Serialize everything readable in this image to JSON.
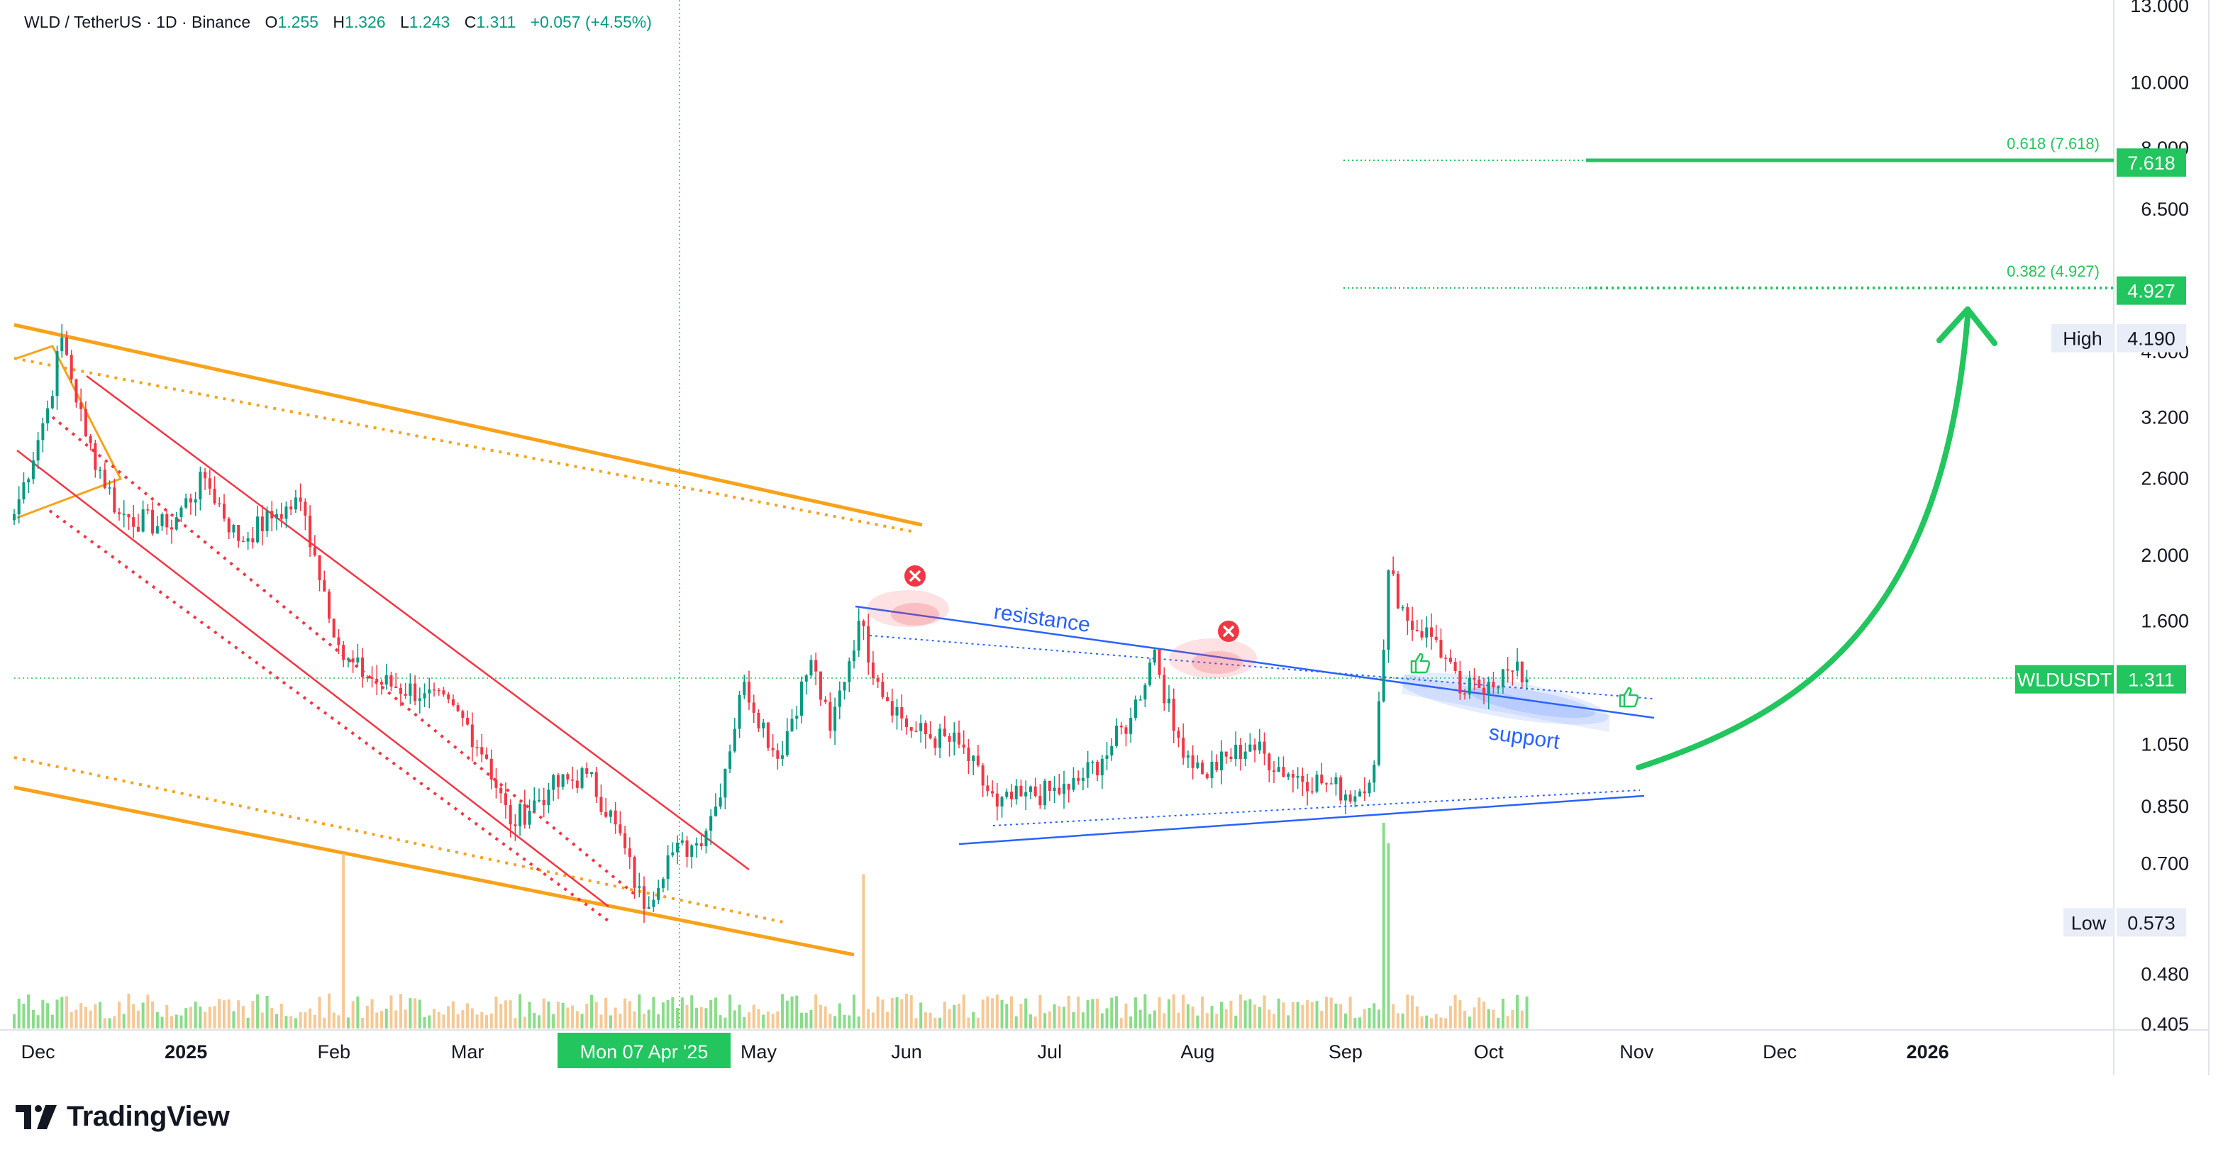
{
  "header": {
    "symbol": "WLD / TetherUS · 1D · Binance",
    "open_label": "O",
    "open": "1.255",
    "high_label": "H",
    "high": "1.326",
    "low_label": "L",
    "low": "1.243",
    "close_label": "C",
    "close": "1.311",
    "change": "+0.057 (+4.55%)"
  },
  "brand": {
    "name": "TradingView"
  },
  "colors": {
    "up": "#089981",
    "down": "#f23645",
    "channel": "#f7a21b",
    "red_channel": "#f23645",
    "blue_line": "#2962ff",
    "green_target": "#22c55e",
    "up_volume": "#7dd87d",
    "down_volume": "#f5c28a"
  },
  "chart_data": {
    "type": "candlestick",
    "symbol": "WLDUSDT",
    "timeframe": "1D",
    "exchange": "Binance",
    "y_scale": "log",
    "ylim": [
      0.405,
      13.0
    ],
    "y_ticks": [
      "13.000",
      "10.000",
      "8.000",
      "6.500",
      "4.000",
      "3.200",
      "2.600",
      "2.000",
      "1.600",
      "1.050",
      "0.850",
      "0.700",
      "0.480",
      "0.405"
    ],
    "y_tick_values": [
      13.0,
      10.0,
      8.0,
      6.5,
      4.0,
      3.2,
      2.6,
      2.0,
      1.6,
      1.05,
      0.85,
      0.7,
      0.48,
      0.405
    ],
    "x_ticks": [
      "Dec",
      "2025",
      "Feb",
      "Mar",
      "Mon 07 Apr '25",
      "May",
      "Jun",
      "Jul",
      "Aug",
      "Sep",
      "Oct",
      "Nov",
      "Dec",
      "2026"
    ],
    "x_tick_dates": [
      "2024-12-01",
      "2025-01-01",
      "2025-02-01",
      "2025-03-01",
      "2025-04-07",
      "2025-05-01",
      "2025-06-01",
      "2025-07-01",
      "2025-08-01",
      "2025-09-01",
      "2025-10-01",
      "2025-11-01",
      "2025-12-01",
      "2026-01-01"
    ],
    "x_tick_highlight": "Mon 07 Apr '25",
    "x_range": [
      "2024-11-26",
      "2026-02-09"
    ],
    "last_candle_date": "2025-10-09",
    "candles_daily_close_anchors": [
      {
        "date": "2024-11-26",
        "close": 2.3
      },
      {
        "date": "2024-12-03",
        "close": 3.3
      },
      {
        "date": "2024-12-06",
        "close": 4.2
      },
      {
        "date": "2024-12-11",
        "close": 3.0
      },
      {
        "date": "2024-12-18",
        "close": 2.3
      },
      {
        "date": "2024-12-28",
        "close": 2.2
      },
      {
        "date": "2025-01-05",
        "close": 2.6
      },
      {
        "date": "2025-01-12",
        "close": 2.1
      },
      {
        "date": "2025-01-20",
        "close": 2.3
      },
      {
        "date": "2025-01-25",
        "close": 2.4
      },
      {
        "date": "2025-01-28",
        "close": 2.0
      },
      {
        "date": "2025-02-03",
        "close": 1.4
      },
      {
        "date": "2025-02-10",
        "close": 1.3
      },
      {
        "date": "2025-02-20",
        "close": 1.25
      },
      {
        "date": "2025-02-28",
        "close": 1.15
      },
      {
        "date": "2025-03-05",
        "close": 1.0
      },
      {
        "date": "2025-03-10",
        "close": 0.8
      },
      {
        "date": "2025-03-18",
        "close": 0.9
      },
      {
        "date": "2025-03-26",
        "close": 0.95
      },
      {
        "date": "2025-04-01",
        "close": 0.8
      },
      {
        "date": "2025-04-07",
        "close": 0.6
      },
      {
        "date": "2025-04-12",
        "close": 0.72
      },
      {
        "date": "2025-04-18",
        "close": 0.75
      },
      {
        "date": "2025-04-22",
        "close": 0.85
      },
      {
        "date": "2025-04-28",
        "close": 1.3
      },
      {
        "date": "2025-05-05",
        "close": 1.0
      },
      {
        "date": "2025-05-12",
        "close": 1.4
      },
      {
        "date": "2025-05-16",
        "close": 1.1
      },
      {
        "date": "2025-05-22",
        "close": 1.6
      },
      {
        "date": "2025-05-26",
        "close": 1.3
      },
      {
        "date": "2025-06-02",
        "close": 1.1
      },
      {
        "date": "2025-06-12",
        "close": 1.05
      },
      {
        "date": "2025-06-20",
        "close": 0.85
      },
      {
        "date": "2025-06-25",
        "close": 0.88
      },
      {
        "date": "2025-07-05",
        "close": 0.9
      },
      {
        "date": "2025-07-12",
        "close": 1.0
      },
      {
        "date": "2025-07-18",
        "close": 1.15
      },
      {
        "date": "2025-07-23",
        "close": 1.45
      },
      {
        "date": "2025-07-27",
        "close": 1.1
      },
      {
        "date": "2025-08-02",
        "close": 0.95
      },
      {
        "date": "2025-08-12",
        "close": 1.05
      },
      {
        "date": "2025-08-20",
        "close": 0.95
      },
      {
        "date": "2025-08-28",
        "close": 0.92
      },
      {
        "date": "2025-09-03",
        "close": 0.88
      },
      {
        "date": "2025-09-07",
        "close": 0.98
      },
      {
        "date": "2025-09-09",
        "close": 1.45
      },
      {
        "date": "2025-09-10",
        "close": 1.9
      },
      {
        "date": "2025-09-14",
        "close": 1.6
      },
      {
        "date": "2025-09-20",
        "close": 1.5
      },
      {
        "date": "2025-09-25",
        "close": 1.25
      },
      {
        "date": "2025-10-01",
        "close": 1.3
      },
      {
        "date": "2025-10-06",
        "close": 1.35
      },
      {
        "date": "2025-10-09",
        "close": 1.311
      }
    ],
    "volume_spikes": [
      {
        "date": "2025-02-03",
        "relative": 0.85
      },
      {
        "date": "2025-05-23",
        "relative": 0.75
      },
      {
        "date": "2025-09-09",
        "relative": 1.0
      },
      {
        "date": "2025-09-10",
        "relative": 0.9
      }
    ],
    "price_labels": [
      {
        "text": "7.618",
        "value": 7.618,
        "color": "#22c55e"
      },
      {
        "text": "4.927",
        "value": 4.927,
        "color": "#22c55e"
      },
      {
        "text": "4.190",
        "value": 4.19,
        "prefix": "High"
      },
      {
        "text": "1.311",
        "value": 1.311,
        "prefix": "WLDUSDT",
        "color": "#22c55e"
      },
      {
        "text": "0.573",
        "value": 0.573,
        "prefix": "Low"
      }
    ],
    "fib_levels": [
      {
        "text": "0.618 (7.618)",
        "value": 7.618
      },
      {
        "text": "0.382 (4.927)",
        "value": 4.927
      }
    ],
    "annotations": [
      {
        "text": "resistance",
        "color": "#2962ff"
      },
      {
        "text": "support",
        "color": "#2962ff"
      }
    ],
    "crosshair_date": "2025-04-07",
    "crosshair_price": 1.311,
    "grid": false,
    "legend": "none"
  }
}
